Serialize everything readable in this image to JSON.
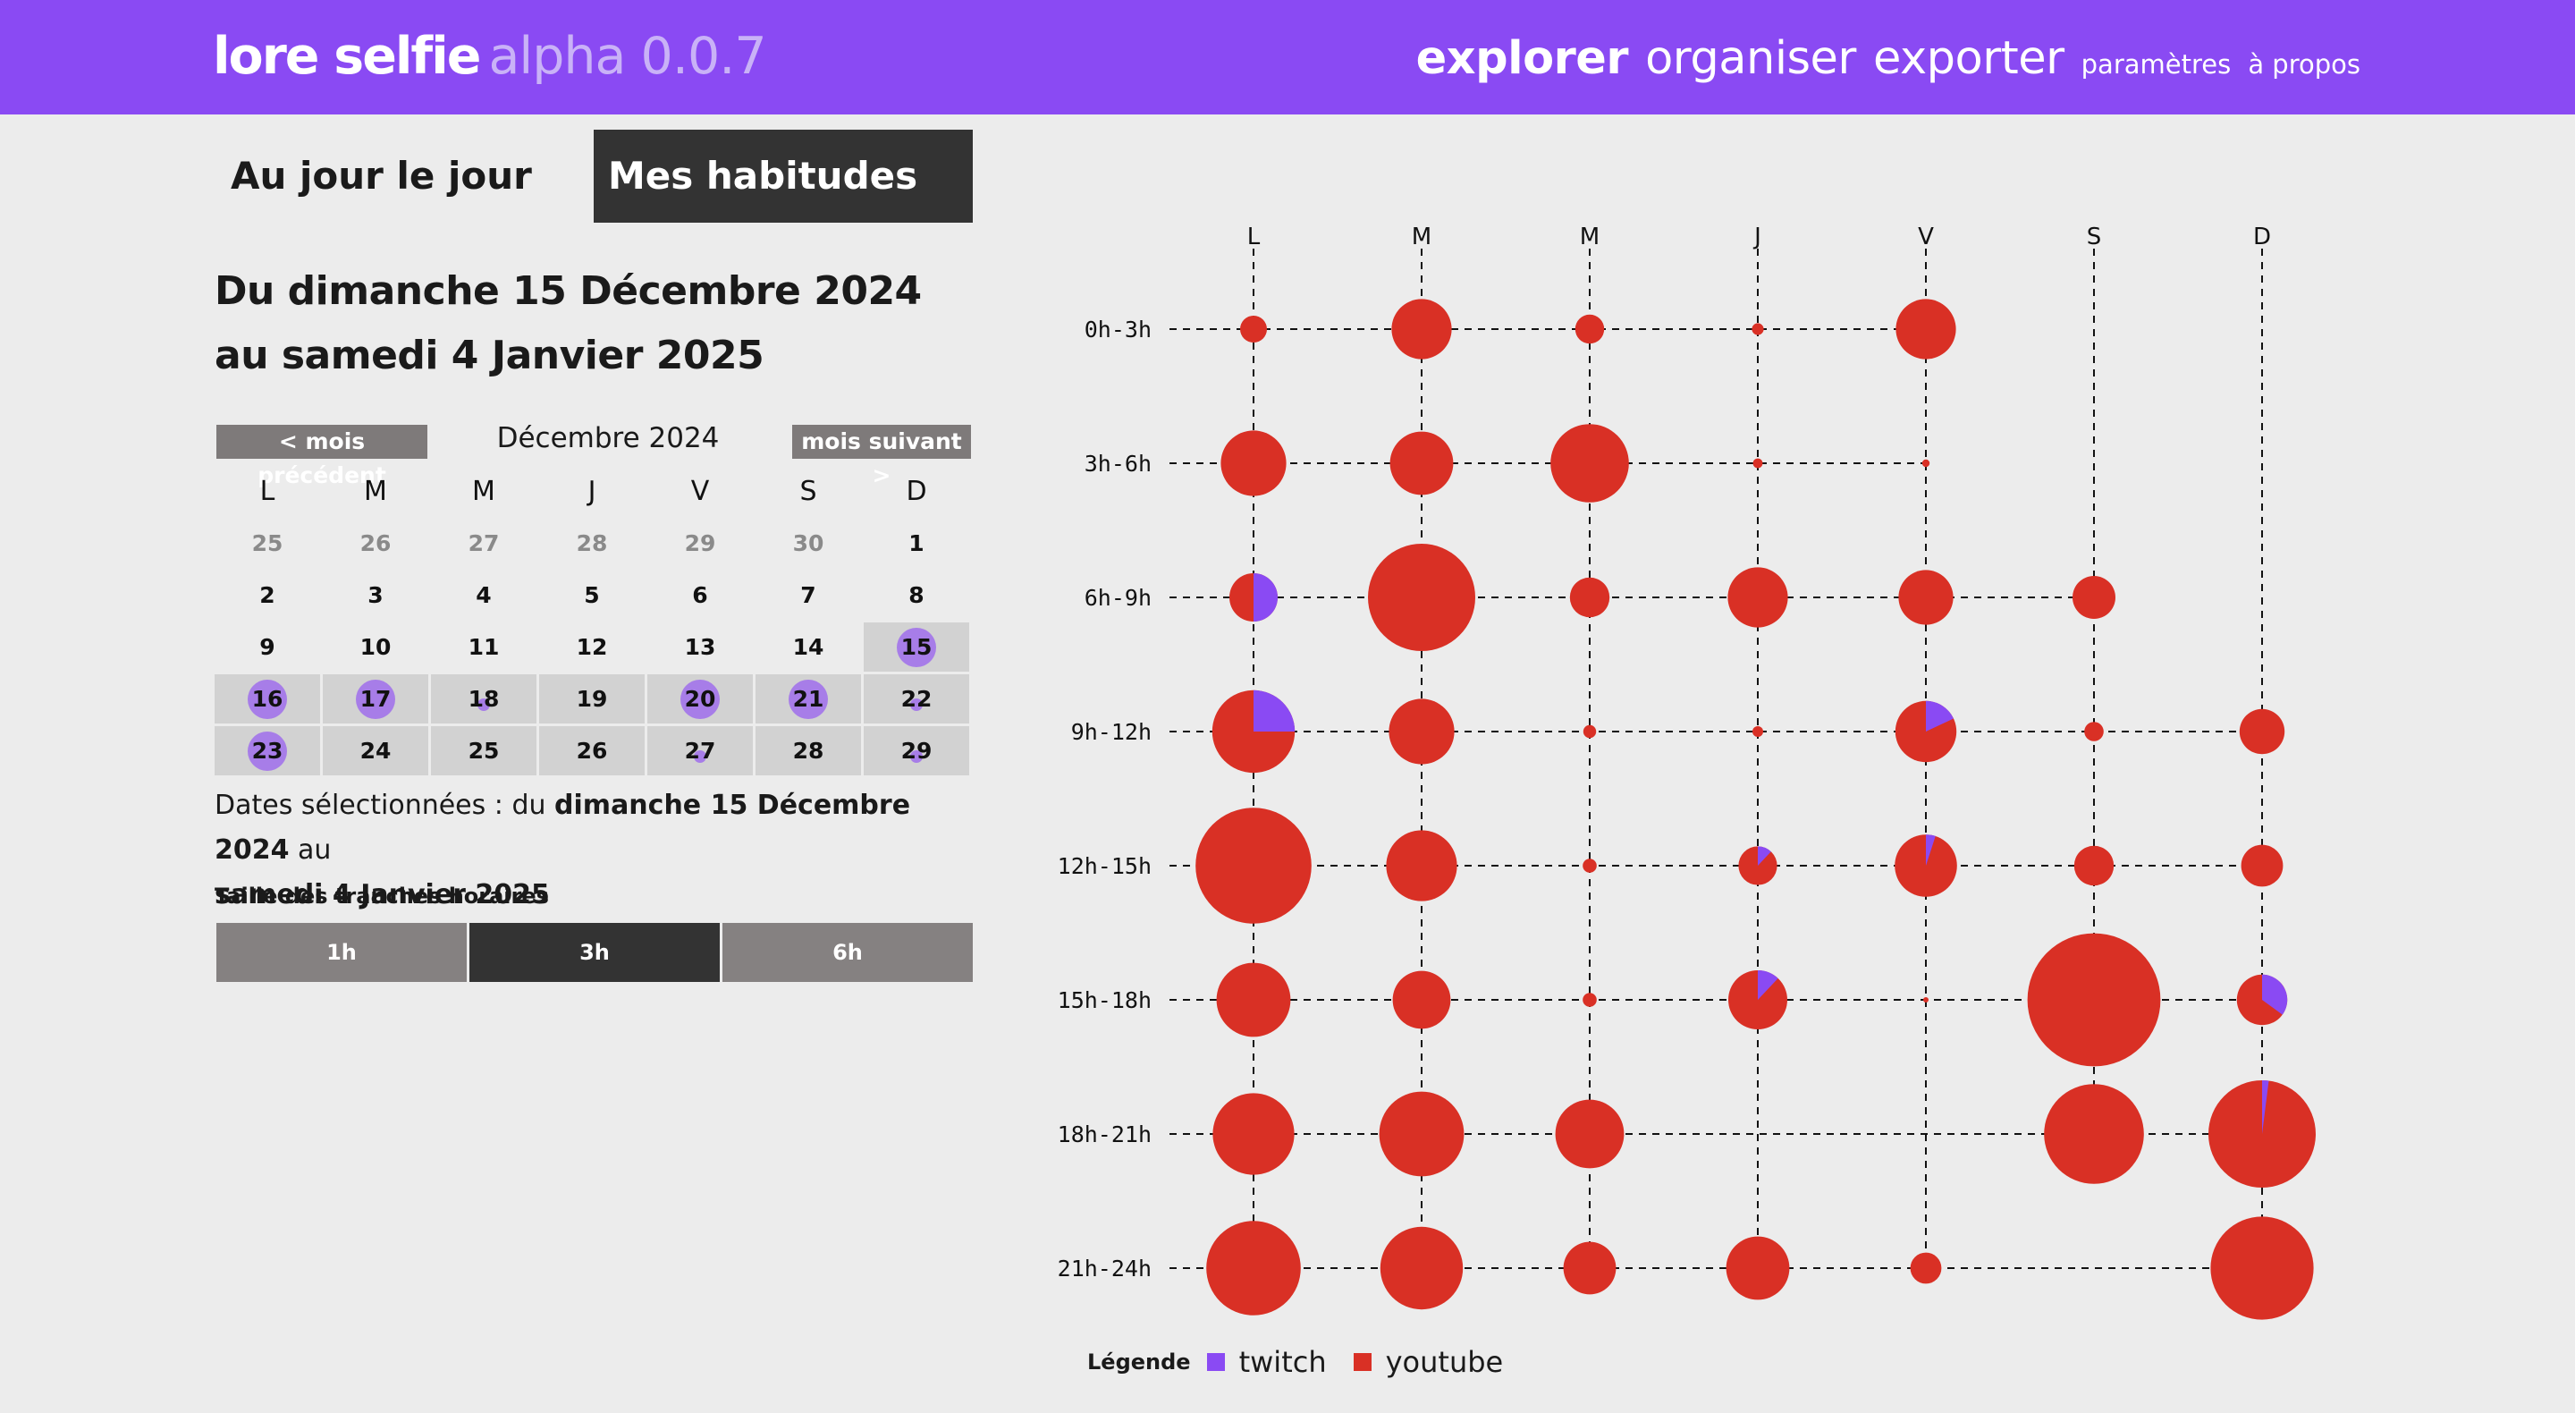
{
  "header": {
    "brand_name": "lore selfie",
    "version": "alpha 0.0.7",
    "nav": [
      {
        "label": "explorer",
        "size": "big",
        "active": true
      },
      {
        "label": "organiser",
        "size": "big",
        "active": false
      },
      {
        "label": "exporter",
        "size": "big",
        "active": false
      },
      {
        "label": "paramètres",
        "size": "small",
        "active": false
      },
      {
        "label": "à propos",
        "size": "small",
        "active": false
      }
    ]
  },
  "tabs": {
    "day_label": "Au jour le jour",
    "habits_label": "Mes habitudes",
    "active": "habits"
  },
  "period_title": "Du dimanche 15 Décembre 2024 au samedi 4 Janvier 2025",
  "calendar": {
    "prev_label": "< mois précédent",
    "next_label": "mois suivant >",
    "month_label": "Décembre 2024",
    "weekday_headers": [
      "L",
      "M",
      "M",
      "J",
      "V",
      "S",
      "D"
    ],
    "weeks": [
      [
        {
          "d": "25",
          "other": true
        },
        {
          "d": "26",
          "other": true
        },
        {
          "d": "27",
          "other": true
        },
        {
          "d": "28",
          "other": true
        },
        {
          "d": "29",
          "other": true
        },
        {
          "d": "30",
          "other": true
        },
        {
          "d": "1"
        }
      ],
      [
        {
          "d": "2"
        },
        {
          "d": "3"
        },
        {
          "d": "4"
        },
        {
          "d": "5"
        },
        {
          "d": "6"
        },
        {
          "d": "7"
        },
        {
          "d": "8"
        }
      ],
      [
        {
          "d": "9"
        },
        {
          "d": "10"
        },
        {
          "d": "11"
        },
        {
          "d": "12"
        },
        {
          "d": "13"
        },
        {
          "d": "14"
        },
        {
          "d": "15",
          "sel": true,
          "dot": 1
        }
      ],
      [
        {
          "d": "16",
          "sel": true,
          "dot": 1
        },
        {
          "d": "17",
          "sel": true,
          "dot": 1
        },
        {
          "d": "18",
          "sel": true,
          "dot": 0.1
        },
        {
          "d": "19",
          "sel": true
        },
        {
          "d": "20",
          "sel": true,
          "dot": 1
        },
        {
          "d": "21",
          "sel": true,
          "dot": 1
        },
        {
          "d": "22",
          "sel": true,
          "dot": 0.1
        }
      ],
      [
        {
          "d": "23",
          "sel": true,
          "dot": 1
        },
        {
          "d": "24",
          "sel": true
        },
        {
          "d": "25",
          "sel": true
        },
        {
          "d": "26",
          "sel": true
        },
        {
          "d": "27",
          "sel": true,
          "dot": 0.1
        },
        {
          "d": "28",
          "sel": true
        },
        {
          "d": "29",
          "sel": true,
          "dot": 0.1
        }
      ]
    ],
    "dot_color": "#a77de8"
  },
  "selected": {
    "prefix": "Dates sélectionnées : du ",
    "start": "dimanche 15 Décembre 2024",
    "middle": " au ",
    "end": "samedi 4 Janvier 2025"
  },
  "slots": {
    "label": "Taille des tranches horaires",
    "options": [
      "1h",
      "3h",
      "6h"
    ],
    "active": "3h"
  },
  "colors": {
    "twitch": "#8a4af3",
    "youtube": "#d93025",
    "header_bg": "#8a4af3"
  },
  "chart_data": {
    "type": "scatter",
    "title": "",
    "x": [
      "L",
      "M",
      "M",
      "J",
      "V",
      "S",
      "D"
    ],
    "y": [
      "0h-3h",
      "3h-6h",
      "6h-9h",
      "9h-12h",
      "12h-15h",
      "15h-18h",
      "18h-21h",
      "21h-24h"
    ],
    "legend_title": "Légende",
    "series": [
      {
        "name": "twitch",
        "color": "#8a4af3"
      },
      {
        "name": "youtube",
        "color": "#d93025"
      }
    ],
    "size_unit": "relative (radius, 0-1)",
    "cells": [
      [
        [
          0.25,
          0
        ],
        [
          0.56,
          0
        ],
        [
          0.27,
          0
        ],
        [
          0.11,
          0
        ],
        [
          0.56,
          0
        ],
        null,
        null
      ],
      [
        [
          0.61,
          0
        ],
        [
          0.59,
          0
        ],
        [
          0.73,
          0
        ],
        [
          0.09,
          0
        ],
        [
          0.07,
          0
        ],
        null,
        null
      ],
      [
        [
          0.45,
          0.5
        ],
        [
          1.0,
          0
        ],
        [
          0.37,
          0
        ],
        [
          0.56,
          0
        ],
        [
          0.51,
          0
        ],
        [
          0.4,
          0
        ],
        null
      ],
      [
        [
          0.77,
          0.25
        ],
        [
          0.61,
          0
        ],
        [
          0.12,
          0
        ],
        [
          0.1,
          0
        ],
        [
          0.57,
          0.18
        ],
        [
          0.18,
          0
        ],
        [
          0.42,
          0
        ]
      ],
      [
        [
          1.08,
          0
        ],
        [
          0.66,
          0
        ],
        [
          0.13,
          0
        ],
        [
          0.36,
          0.12
        ],
        [
          0.58,
          0.05
        ],
        [
          0.37,
          0
        ],
        [
          0.39,
          0
        ]
      ],
      [
        [
          0.69,
          0
        ],
        [
          0.54,
          0
        ],
        [
          0.13,
          0
        ],
        [
          0.55,
          0.12
        ],
        [
          0.04,
          0
        ],
        [
          1.24,
          0
        ],
        [
          0.47,
          0.35
        ]
      ],
      [
        [
          0.76,
          0
        ],
        [
          0.79,
          0
        ],
        [
          0.64,
          0
        ],
        null,
        null,
        [
          0.93,
          0
        ],
        [
          1.0,
          0.02
        ]
      ],
      [
        [
          0.88,
          0
        ],
        [
          0.77,
          0
        ],
        [
          0.49,
          0
        ],
        [
          0.59,
          0
        ],
        [
          0.29,
          0
        ],
        null,
        [
          0.96,
          0
        ]
      ]
    ]
  }
}
